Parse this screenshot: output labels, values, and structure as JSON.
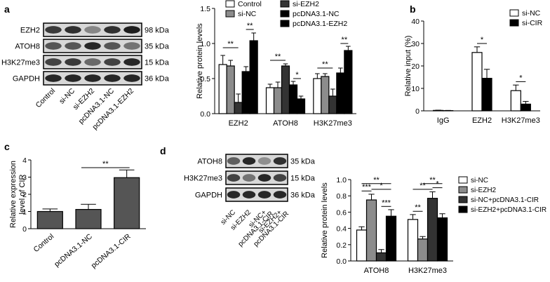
{
  "panel_labels": {
    "a": "a",
    "b": "b",
    "c": "c",
    "d": "d"
  },
  "blots_a": {
    "rows": [
      {
        "name": "EZH2",
        "kda": "98 kDa",
        "intensity": [
          0.75,
          0.8,
          0.35,
          0.8,
          0.9
        ]
      },
      {
        "name": "ATOH8",
        "kda": "35 kDa",
        "intensity": [
          0.6,
          0.6,
          0.85,
          0.6,
          0.45
        ]
      },
      {
        "name": "H3K27me3",
        "kda": "15 kDa",
        "intensity": [
          0.7,
          0.75,
          0.5,
          0.7,
          0.85
        ]
      },
      {
        "name": "GAPDH",
        "kda": "36 kDa",
        "intensity": [
          0.85,
          0.85,
          0.85,
          0.85,
          0.85
        ]
      }
    ],
    "lanes": [
      "Control",
      "si-NC",
      "si-EZH2",
      "pcDNA3.1-NC",
      "pcDNA3.1-EZH2"
    ]
  },
  "blots_d": {
    "rows": [
      {
        "name": "ATOH8",
        "kda": "35 kDa",
        "intensity": [
          0.55,
          0.85,
          0.3,
          0.8
        ]
      },
      {
        "name": "H3K27me3",
        "kda": "15 kDa",
        "intensity": [
          0.7,
          0.45,
          0.85,
          0.7
        ]
      },
      {
        "name": "GAPDH",
        "kda": "36 kDa",
        "intensity": [
          0.85,
          0.85,
          0.85,
          0.85
        ]
      }
    ],
    "lanes": [
      "si-NC",
      "si-EZH2",
      "si-NC+\npcDNA3.1-CIR",
      "si-EZH2+\npcDNA3.1-CIR"
    ]
  },
  "colors": {
    "white": "#ffffff",
    "gray": "#8c8c8c",
    "dark": "#333333",
    "black": "#000000",
    "darkgray": "#555555"
  },
  "chart_data": [
    {
      "panel": "a",
      "type": "bar",
      "ylabel": "Relative protein levels",
      "ylim": [
        0,
        1.5
      ],
      "yticks": [
        "0.0",
        "0.5",
        "1.0",
        "1.5"
      ],
      "categories": [
        "EZH2",
        "ATOH8",
        "H3K27me3"
      ],
      "series": [
        {
          "name": "Control",
          "color": "#ffffff",
          "values": [
            0.7,
            0.37,
            0.5
          ],
          "err": [
            0.13,
            0.05,
            0.07
          ]
        },
        {
          "name": "si-NC",
          "color": "#8c8c8c",
          "values": [
            0.68,
            0.37,
            0.53
          ],
          "err": [
            0.08,
            0.08,
            0.04
          ]
        },
        {
          "name": "si-EZH2",
          "color": "#333333",
          "values": [
            0.16,
            0.68,
            0.25
          ],
          "err": [
            0.12,
            0.03,
            0.1
          ]
        },
        {
          "name": "pcDNA3.1-NC",
          "color": "#000000",
          "values": [
            0.6,
            0.41,
            0.58
          ],
          "err": [
            0.07,
            0.05,
            0.07
          ]
        },
        {
          "name": "pcDNA3.1-EZH2",
          "color": "#000000",
          "values": [
            1.04,
            0.21,
            0.9
          ],
          "err": [
            0.11,
            0.04,
            0.06
          ]
        }
      ],
      "significance": [
        "**",
        "**",
        "**",
        "*",
        "**",
        "**"
      ],
      "legend_position": "top"
    },
    {
      "panel": "b",
      "type": "bar",
      "ylabel": "Relative input (%)",
      "ylim": [
        0,
        40
      ],
      "yticks": [
        "0",
        "10",
        "20",
        "30",
        "40"
      ],
      "categories": [
        "IgG",
        "EZH2",
        "H3K27me3"
      ],
      "series": [
        {
          "name": "si-NC",
          "color": "#ffffff",
          "values": [
            0.2,
            26,
            9
          ],
          "err": [
            0.1,
            2.5,
            2.5
          ]
        },
        {
          "name": "si-CIR",
          "color": "#000000",
          "values": [
            0.1,
            14.5,
            3
          ],
          "err": [
            0.1,
            4,
            1.2
          ]
        }
      ],
      "significance": [
        "*",
        "*"
      ],
      "legend_position": "top-right"
    },
    {
      "panel": "c",
      "type": "bar",
      "ylabel": "Relative expression\nlevel of CIR",
      "ylim": [
        0,
        4
      ],
      "yticks": [
        "0",
        "1",
        "2",
        "3",
        "4"
      ],
      "categories": [
        "Control",
        "pcDNA3.1-NC",
        "pcDNA3.1-CIR"
      ],
      "values": [
        1.0,
        1.12,
        2.97
      ],
      "err": [
        0.15,
        0.3,
        0.45
      ],
      "color": "#555555",
      "significance": [
        "**"
      ]
    },
    {
      "panel": "d",
      "type": "bar",
      "ylabel": "Relative protein levels",
      "ylim": [
        0,
        1.0
      ],
      "yticks": [
        "0.0",
        "0.2",
        "0.4",
        "0.6",
        "0.8",
        "1.0"
      ],
      "categories": [
        "ATOH8",
        "H3K27me3"
      ],
      "series": [
        {
          "name": "si-NC",
          "color": "#ffffff",
          "values": [
            0.38,
            0.51
          ],
          "err": [
            0.04,
            0.06
          ]
        },
        {
          "name": "si-EZH2",
          "color": "#8c8c8c",
          "values": [
            0.75,
            0.27
          ],
          "err": [
            0.07,
            0.03
          ]
        },
        {
          "name": "si-NC+pcDNA3.1-CIR",
          "color": "#333333",
          "values": [
            0.1,
            0.77
          ],
          "err": [
            0.04,
            0.08
          ]
        },
        {
          "name": "si-EZH2+pcDNA3.1-CIR",
          "color": "#000000",
          "values": [
            0.55,
            0.53
          ],
          "err": [
            0.08,
            0.05
          ]
        }
      ],
      "significance": [
        "**",
        "***",
        "*",
        "***",
        "**",
        "**",
        "*",
        "**"
      ],
      "legend_position": "right"
    }
  ]
}
